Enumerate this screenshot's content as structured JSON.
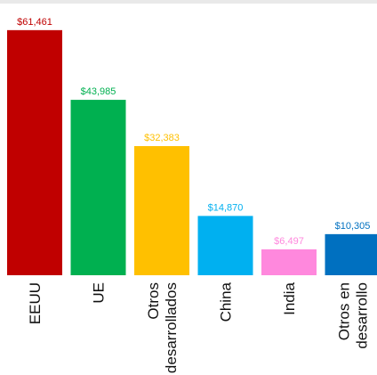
{
  "chart_data": {
    "type": "bar",
    "categories": [
      "EEUU",
      "UE",
      "Otros desarrollados",
      "China",
      "India",
      "Otros en desarrollo"
    ],
    "category_lines": [
      [
        "EEUU"
      ],
      [
        "UE"
      ],
      [
        "Otros",
        "desarrollados"
      ],
      [
        "China"
      ],
      [
        "India"
      ],
      [
        "Otros en",
        "desarrollo"
      ]
    ],
    "values": [
      61461,
      43985,
      32383,
      14870,
      6497,
      10305
    ],
    "value_labels": [
      "$61,461",
      "$43,985",
      "$32,383",
      "$14,870",
      "$6,497",
      "$10,305"
    ],
    "colors": [
      "#c00000",
      "#00b050",
      "#ffc000",
      "#00b0f0",
      "#ff88dd",
      "#0070c0"
    ],
    "label_colors": [
      "#c00000",
      "#00b050",
      "#ffc000",
      "#00b0f0",
      "#ff88dd",
      "#0070c0"
    ],
    "ylim": [
      0,
      65000
    ],
    "grid": false,
    "legend": "none"
  }
}
